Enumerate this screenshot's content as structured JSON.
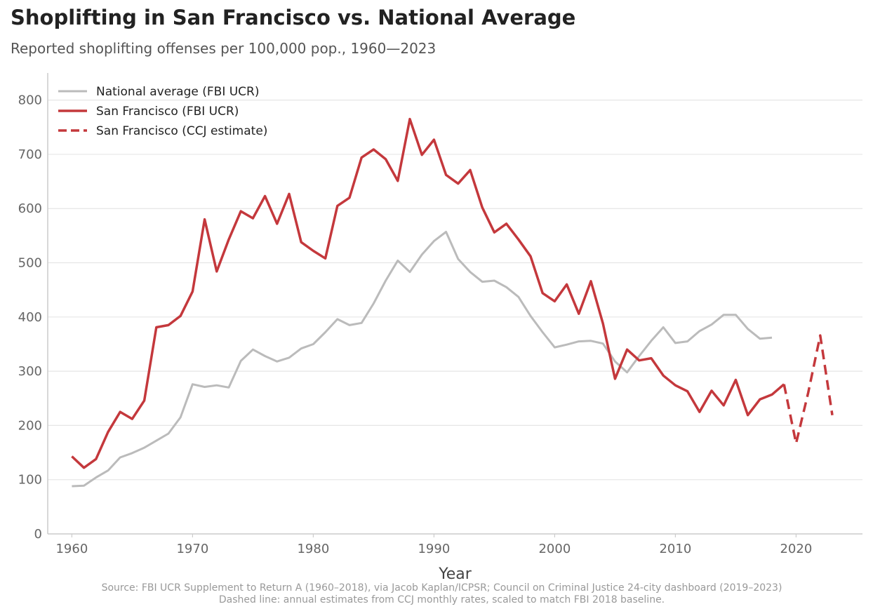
{
  "chart_data": {
    "type": "line",
    "title": "Shoplifting in San Francisco vs. National Average",
    "subtitle": "Reported shoplifting offenses per 100,000 pop., 1960—2023",
    "xlabel": "Year",
    "ylabel": "",
    "xlim": [
      1958,
      2025.5
    ],
    "ylim": [
      0,
      850
    ],
    "xticks": [
      1960,
      1970,
      1980,
      1990,
      2000,
      2010,
      2020
    ],
    "yticks": [
      0,
      100,
      200,
      300,
      400,
      500,
      600,
      700,
      800
    ],
    "grid": "horizontal",
    "legend_position": "top-left",
    "series": [
      {
        "name": "National average (FBI UCR)",
        "color": "#bbbbbb",
        "style": "solid",
        "x": [
          1960,
          1961,
          1962,
          1963,
          1964,
          1965,
          1966,
          1967,
          1968,
          1969,
          1970,
          1971,
          1972,
          1973,
          1974,
          1975,
          1976,
          1977,
          1978,
          1979,
          1980,
          1981,
          1982,
          1983,
          1984,
          1985,
          1986,
          1987,
          1988,
          1989,
          1990,
          1991,
          1992,
          1993,
          1994,
          1995,
          1996,
          1997,
          1998,
          1999,
          2000,
          2001,
          2002,
          2003,
          2004,
          2005,
          2006,
          2007,
          2008,
          2009,
          2010,
          2011,
          2012,
          2013,
          2014,
          2015,
          2016,
          2017,
          2018
        ],
        "values": [
          88,
          89,
          104,
          117,
          141,
          149,
          159,
          172,
          185,
          215,
          276,
          271,
          274,
          270,
          319,
          340,
          328,
          318,
          325,
          342,
          350,
          372,
          396,
          385,
          389,
          425,
          467,
          504,
          483,
          515,
          540,
          557,
          507,
          483,
          465,
          467,
          455,
          437,
          402,
          372,
          344,
          349,
          355,
          356,
          351,
          318,
          298,
          328,
          356,
          381,
          352,
          355,
          374,
          386,
          404,
          404,
          378,
          360,
          362
        ]
      },
      {
        "name": "San Francisco (FBI UCR)",
        "color": "#c4383c",
        "style": "solid",
        "x": [
          1960,
          1961,
          1962,
          1963,
          1964,
          1965,
          1966,
          1967,
          1968,
          1969,
          1970,
          1971,
          1972,
          1973,
          1974,
          1975,
          1976,
          1977,
          1978,
          1979,
          1980,
          1981,
          1982,
          1983,
          1984,
          1985,
          1986,
          1987,
          1988,
          1989,
          1990,
          1991,
          1992,
          1993,
          1994,
          1995,
          1996,
          1997,
          1998,
          1999,
          2000,
          2001,
          2002,
          2003,
          2004,
          2005,
          2006,
          2007,
          2008,
          2009,
          2010,
          2011,
          2012,
          2013,
          2014,
          2015,
          2016,
          2017,
          2018,
          2019
        ],
        "values": [
          143,
          122,
          138,
          188,
          225,
          212,
          246,
          381,
          385,
          402,
          447,
          580,
          484,
          543,
          595,
          582,
          623,
          572,
          627,
          538,
          522,
          508,
          605,
          620,
          694,
          709,
          691,
          651,
          765,
          699,
          727,
          662,
          646,
          671,
          602,
          556,
          572,
          543,
          512,
          444,
          429,
          460,
          406,
          466,
          388,
          286,
          340,
          320,
          324,
          292,
          274,
          263,
          225,
          264,
          237,
          284,
          219,
          248,
          257,
          276
        ]
      },
      {
        "name": "San Francisco (CCJ estimate)",
        "color": "#c4383c",
        "style": "dashed",
        "x": [
          2019,
          2020,
          2021,
          2022,
          2023
        ],
        "values": [
          276,
          167,
          260,
          366,
          219
        ]
      }
    ]
  },
  "footnotes": {
    "source": "Source: FBI UCR Supplement to Return A (1960–2018), via Jacob Kaplan/ICPSR; Council on Criminal Justice 24-city dashboard (2019–2023)",
    "dashed_note": "Dashed line: annual estimates from CCJ monthly rates, scaled to match FBI 2018 baseline."
  }
}
